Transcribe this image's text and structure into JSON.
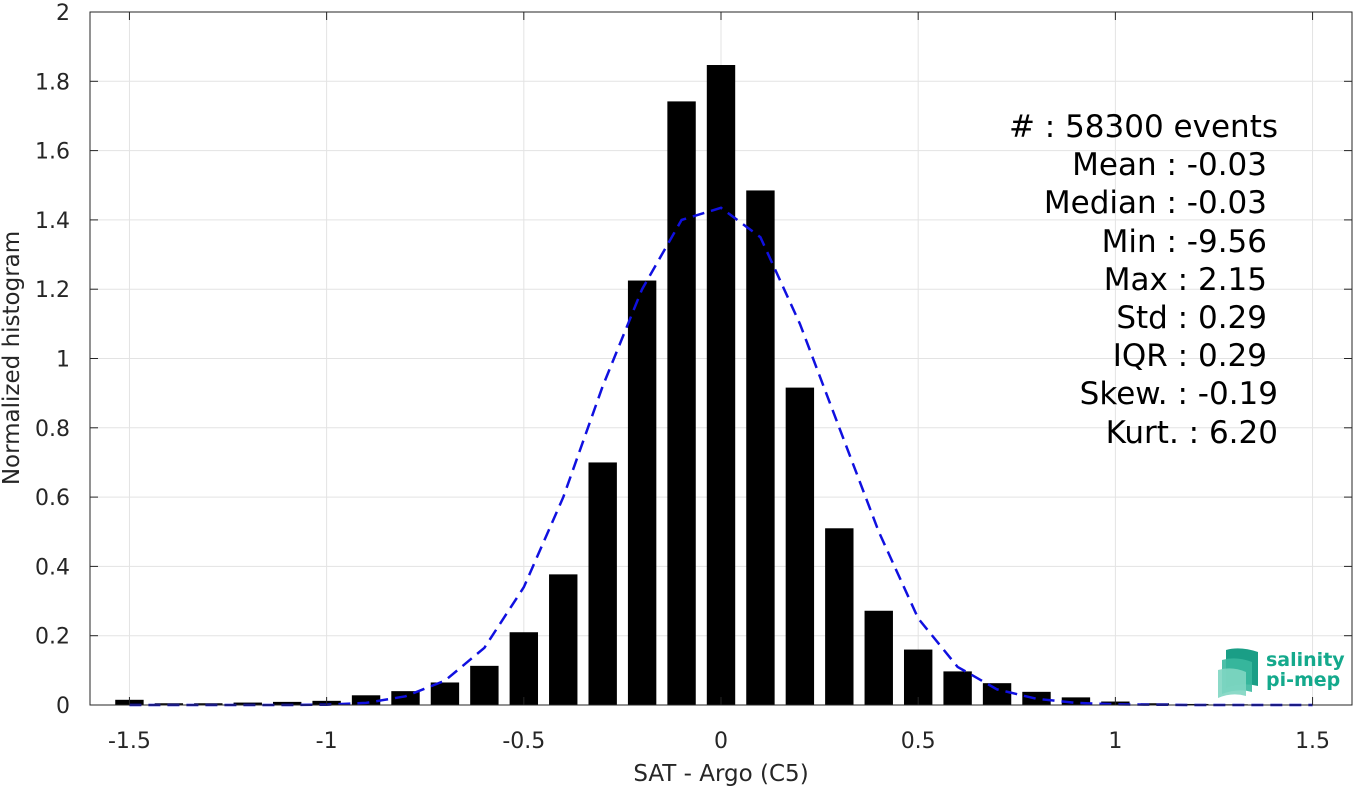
{
  "chart_data": {
    "type": "bar",
    "xlabel": "SAT - Argo (C5)",
    "ylabel": "Normalized histogram",
    "xlim": [
      -1.6,
      1.6
    ],
    "ylim": [
      0,
      2
    ],
    "grid": true,
    "x_ticks": [
      "-1.5",
      "-1",
      "-0.5",
      "0",
      "0.5",
      "1",
      "1.5"
    ],
    "y_ticks": [
      "0",
      "0.2",
      "0.4",
      "0.6",
      "0.8",
      "1",
      "1.2",
      "1.4",
      "1.6",
      "1.8",
      "2"
    ],
    "bar_color": "#000000",
    "bars": {
      "x": [
        -1.5,
        -1.4,
        -1.3,
        -1.2,
        -1.1,
        -1.0,
        -0.9,
        -0.8,
        -0.7,
        -0.6,
        -0.5,
        -0.4,
        -0.3,
        -0.2,
        -0.1,
        0.0,
        0.1,
        0.2,
        0.3,
        0.4,
        0.5,
        0.6,
        0.7,
        0.8,
        0.9,
        1.0,
        1.1,
        1.2,
        1.3,
        1.4,
        1.5
      ],
      "values": [
        0.015,
        0.005,
        0.005,
        0.007,
        0.009,
        0.012,
        0.028,
        0.04,
        0.065,
        0.113,
        0.21,
        0.377,
        0.7,
        1.225,
        1.742,
        1.847,
        1.485,
        0.916,
        0.51,
        0.272,
        0.16,
        0.097,
        0.063,
        0.038,
        0.022,
        0.01,
        0.005,
        0.003,
        0.002,
        0.001,
        0.001
      ]
    },
    "fit": {
      "name": "",
      "color": "#1010e0",
      "style": "dashed",
      "x": [
        -1.5,
        -1.4,
        -1.3,
        -1.2,
        -1.1,
        -1.0,
        -0.9,
        -0.8,
        -0.7,
        -0.6,
        -0.5,
        -0.4,
        -0.3,
        -0.2,
        -0.1,
        0.0,
        0.1,
        0.2,
        0.3,
        0.4,
        0.5,
        0.6,
        0.7,
        0.8,
        0.9,
        1.0,
        1.1,
        1.2,
        1.3,
        1.4,
        1.5
      ],
      "y": [
        0.0,
        0.0,
        0.0,
        0.0,
        0.0,
        0.001,
        0.006,
        0.025,
        0.07,
        0.165,
        0.34,
        0.6,
        0.92,
        1.2,
        1.4,
        1.435,
        1.35,
        1.1,
        0.8,
        0.5,
        0.25,
        0.11,
        0.045,
        0.018,
        0.006,
        0.002,
        0.001,
        0.0,
        0.0,
        0.0,
        0.0
      ]
    }
  },
  "stats": [
    {
      "label": "#  : 58300 events"
    },
    {
      "label": "Mean : -0.03"
    },
    {
      "label": "Median : -0.03"
    },
    {
      "label": "Min : -9.56"
    },
    {
      "label": "Max : 2.15"
    },
    {
      "label": "Std : 0.29"
    },
    {
      "label": "IQR : 0.29"
    },
    {
      "label": "Skew. : -0.19"
    },
    {
      "label": "Kurt. : 6.20"
    }
  ],
  "logo": {
    "line1": "salinity",
    "line2": "pi-mep",
    "accent": "#14a98c"
  }
}
